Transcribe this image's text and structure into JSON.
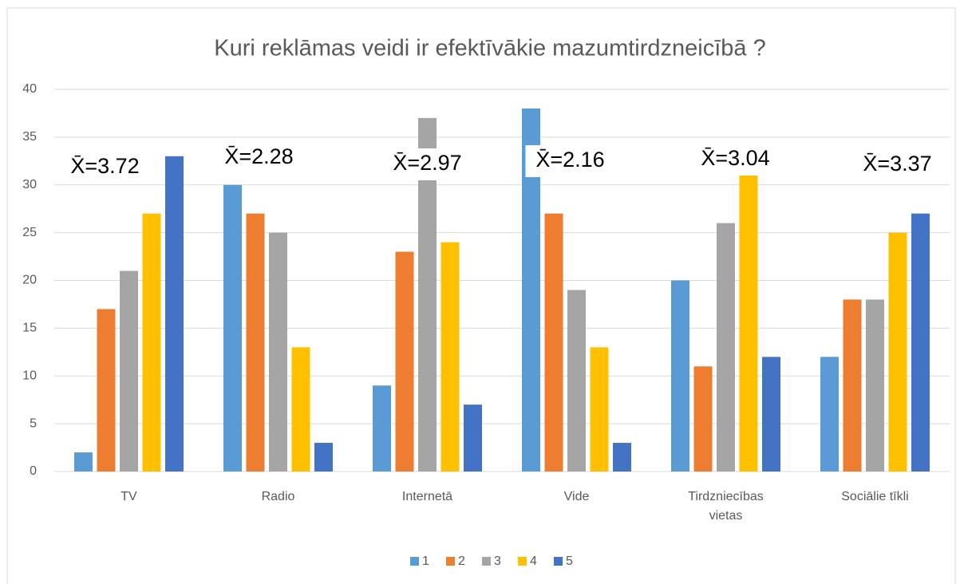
{
  "chart_data": {
    "type": "bar",
    "title": "Kuri reklāmas veidi ir efektīvākie mazumtirdzneicībā ?",
    "categories": [
      "TV",
      "Radio",
      "Internetā",
      "Vide",
      "Tirdzniecības vietas",
      "Sociālie tīkli"
    ],
    "series": [
      {
        "name": "1",
        "color": "#5b9bd5",
        "values": [
          2,
          30,
          9,
          38,
          20,
          12
        ]
      },
      {
        "name": "2",
        "color": "#ed7d31",
        "values": [
          17,
          27,
          23,
          27,
          11,
          18
        ]
      },
      {
        "name": "3",
        "color": "#a5a5a5",
        "values": [
          21,
          25,
          37,
          19,
          26,
          18
        ]
      },
      {
        "name": "4",
        "color": "#ffc000",
        "values": [
          27,
          13,
          24,
          13,
          31,
          25
        ]
      },
      {
        "name": "5",
        "color": "#4472c4",
        "values": [
          33,
          3,
          7,
          3,
          12,
          27
        ]
      }
    ],
    "annotations": [
      "X̄=3.72",
      "X̄=2.28",
      "X̄=2.97",
      "X̄=2.16",
      "X̄=3.04",
      "X̄=3.37"
    ],
    "ylim": [
      0,
      40
    ],
    "yticks": [
      0,
      5,
      10,
      15,
      20,
      25,
      30,
      35,
      40
    ],
    "grid": true,
    "legend": "bottom"
  }
}
